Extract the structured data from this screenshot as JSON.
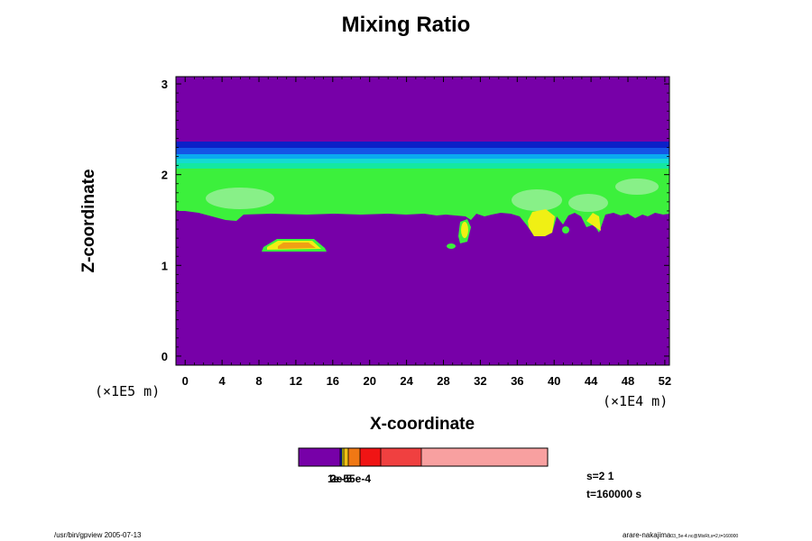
{
  "chart_data": {
    "type": "heatmap",
    "title": "Mixing Ratio",
    "xlabel": "X-coordinate",
    "ylabel": "Z-coordinate",
    "x_multiplier": "(×1E4 m)",
    "z_multiplier": "(×1E5 m)",
    "x_ticks": [
      "0",
      "4",
      "8",
      "12",
      "16",
      "20",
      "24",
      "28",
      "32",
      "36",
      "40",
      "44",
      "48",
      "52"
    ],
    "z_ticks": [
      "0",
      "1",
      "2",
      "3"
    ],
    "xlim": [
      -1,
      52.5
    ],
    "ylim": [
      -0.1,
      3.08
    ],
    "colorbar_labels": [
      "1e-5",
      "2e-5",
      "5e-4"
    ],
    "colors": {
      "background": "#7700a8",
      "band_top": "#0b20c8",
      "band_blue": "#1455e6",
      "band_mid": "#0aaaf0",
      "band_cyan": "#14dcd0",
      "band_teal": "#14e8a0",
      "green": "#3cf03c",
      "light_green": "#88f088",
      "yellow": "#f0f014",
      "orange": "#f0a014",
      "red": "#f01414",
      "salmon": "#f04040",
      "pink": "#f8a0a0"
    },
    "colorbar_colors": [
      "#7700a8",
      "#0b20c8",
      "#f0f014",
      "#f0c014",
      "#f07814",
      "#f01414",
      "#f04040",
      "#f8a0a0"
    ]
  },
  "info": {
    "s_value": "s=2 1",
    "t_value": "t=160000 s"
  },
  "footer": {
    "left": "/usr/bin/gpview 2005-07-13",
    "right_main": "arare-nakajima",
    "right_sub": "03_5e-4.nc@MixRt,s=2,t=160000"
  }
}
